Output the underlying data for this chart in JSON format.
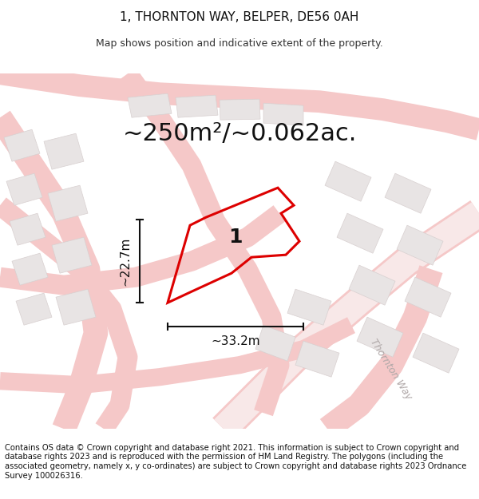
{
  "title": "1, THORNTON WAY, BELPER, DE56 0AH",
  "subtitle": "Map shows position and indicative extent of the property.",
  "area_label": "~250m²/~0.062ac.",
  "width_label": "~33.2m",
  "height_label": "~22.7m",
  "property_number": "1",
  "road_name": "Thornton Way",
  "footer_text": "Contains OS data © Crown copyright and database right 2021. This information is subject to Crown copyright and database rights 2023 and is reproduced with the permission of HM Land Registry. The polygons (including the associated geometry, namely x, y co-ordinates) are subject to Crown copyright and database rights 2023 Ordnance Survey 100026316.",
  "bg_color": "#ffffff",
  "map_bg": "#faf8f8",
  "road_color": "#f5c8c8",
  "building_color": "#e8e4e4",
  "building_edge": "#d8d0d0",
  "property_color": "#dd0000",
  "dim_color": "#111111",
  "road_name_color": "#b0a8a8",
  "title_fontsize": 11,
  "subtitle_fontsize": 9,
  "area_fontsize": 22,
  "dim_fontsize": 11,
  "footer_fontsize": 7.2
}
